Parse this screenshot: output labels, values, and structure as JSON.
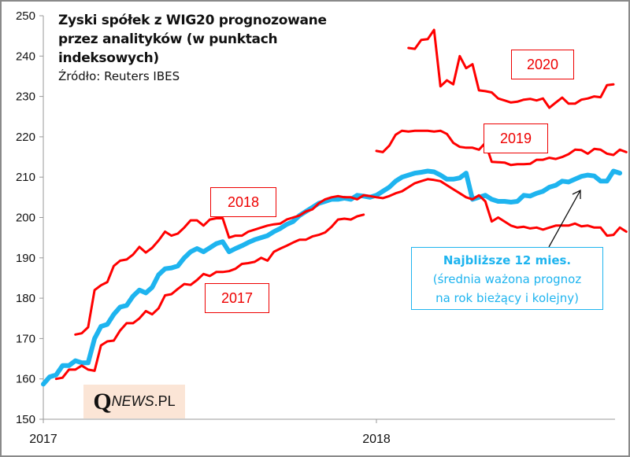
{
  "chart_data": {
    "type": "line",
    "title": "Zyski spółek z WIG20 prognozowane przez analityków (w punktach indeksowych)",
    "subtitle": "Źródło: Reuters IBES",
    "xlabel": "",
    "ylabel": "",
    "ylim": [
      150,
      250
    ],
    "yticks": [
      150,
      160,
      170,
      180,
      190,
      200,
      210,
      220,
      230,
      240,
      250
    ],
    "xticks": [
      {
        "label": "2017",
        "week": 0
      },
      {
        "label": "2018",
        "week": 52
      }
    ],
    "x_unit": "weeks since start of 2017",
    "xlim": [
      0,
      89
    ],
    "grid": false,
    "legend": "none (series labelled in boxes)",
    "series": [
      {
        "name": "2017",
        "color": "#ff0000",
        "start_week": 2,
        "values": [
          160,
          160.3,
          162.3,
          162.3,
          163.3,
          162.3,
          162,
          168.3,
          169.3,
          169.5,
          172,
          173.8,
          173.8,
          175,
          176.8,
          176,
          177.5,
          180.7,
          181,
          182.3,
          183.5,
          183.3,
          184.5,
          186,
          185.5,
          186.5,
          186.5,
          186.7,
          187.3,
          188.5,
          188.7,
          189,
          190,
          189.3,
          191.5,
          192.3,
          193,
          193.8,
          194.5,
          194.5,
          195.3,
          195.7,
          196.3,
          197.7,
          199.5,
          199.7,
          199.5,
          200.3,
          200.7
        ]
      },
      {
        "name": "2018",
        "color": "#ff0000",
        "start_week": 5,
        "values": [
          171,
          171.3,
          172.8,
          182,
          183.2,
          184,
          188,
          189.3,
          189.6,
          190.8,
          192.7,
          191.3,
          192.5,
          194.3,
          196.5,
          195.5,
          196,
          197.5,
          199.3,
          199.3,
          198,
          199.5,
          199.8,
          199.8,
          195,
          195.5,
          195.5,
          196.5,
          197,
          197.5,
          198,
          198.3,
          198.5,
          199.5,
          200,
          200.5,
          201.5,
          202,
          203.5,
          204.5,
          205,
          205.3,
          205,
          205,
          204.5,
          205.5,
          205.3,
          205,
          204.8,
          205.3,
          206,
          206.5,
          207.5,
          208.5,
          209,
          209.5,
          209.3,
          209,
          208,
          207,
          206,
          205,
          204.5,
          205.5,
          204,
          199,
          200,
          199,
          198,
          197.5,
          197.7,
          197.3,
          197.5,
          197,
          197.5,
          198,
          198,
          198,
          198.5,
          197.8,
          198,
          197.5,
          197.5,
          195.5,
          195.7,
          197.5,
          196.5
        ]
      },
      {
        "name": "2019",
        "color": "#ff0000",
        "start_week": 52,
        "values": [
          216.5,
          216.2,
          217.8,
          220.5,
          221.5,
          221.3,
          221.5,
          221.5,
          221.5,
          221.3,
          221.5,
          220.7,
          218.5,
          217.5,
          217.3,
          217.3,
          216.8,
          218.5,
          213.8,
          213.7,
          213.6,
          213,
          213.2,
          213.2,
          213.3,
          214.3,
          214.3,
          214.8,
          214.5,
          215,
          215.7,
          216.8,
          216.7,
          215.8,
          217,
          216.8,
          215.8,
          215.5,
          216.8,
          216.2
        ]
      },
      {
        "name": "2020",
        "color": "#ff0000",
        "start_week": 57,
        "values": [
          242,
          241.8,
          244,
          244.2,
          246.5,
          232.5,
          234,
          233,
          240,
          237,
          238,
          231.5,
          231.3,
          231,
          229.5,
          229,
          228.5,
          228.7,
          229.2,
          229.4,
          229,
          229.5,
          227.2,
          228.5,
          229.7,
          228.2,
          228.2,
          229.2,
          229.5,
          230,
          229.8,
          232.8,
          233
        ]
      },
      {
        "name": "Najbliższe 12 mies.",
        "color": "#1eb4ef",
        "start_week": 0,
        "values": [
          158.7,
          160.5,
          161,
          163.3,
          163.3,
          164.5,
          164,
          164,
          170,
          173,
          173.5,
          176,
          177.8,
          178.2,
          180.5,
          182,
          181.3,
          182.7,
          185.8,
          187.3,
          187.5,
          188,
          190,
          191.5,
          192.3,
          191.5,
          192.5,
          193.5,
          194,
          191.5,
          192.3,
          193,
          193.8,
          194.5,
          195,
          195.5,
          196.5,
          197.3,
          198.3,
          199,
          200.5,
          201.5,
          202.5,
          203.5,
          204,
          204.5,
          204.5,
          204.8,
          204.5,
          205.5,
          205.3,
          205,
          205.5,
          206.5,
          207.5,
          209,
          210,
          210.5,
          211,
          211.2,
          211.5,
          211.3,
          210.5,
          209.5,
          209.5,
          209.8,
          211,
          204.5,
          205,
          205.5,
          204.5,
          204,
          204,
          203.8,
          204,
          205.5,
          205.3,
          206,
          206.5,
          207.5,
          208,
          209,
          208.8,
          209.5,
          210.2,
          210.5,
          210.3,
          209,
          209,
          211.5,
          211
        ]
      }
    ],
    "annotations": [
      {
        "text": "2018",
        "style": "red-box"
      },
      {
        "text": "2017",
        "style": "red-box"
      },
      {
        "text": "2019",
        "style": "red-box"
      },
      {
        "text": "2020",
        "style": "red-box"
      },
      {
        "text": "Najbliższe 12 mies.",
        "subtext": [
          "(średnia ważona prognoz",
          "na rok bieżący i kolejny)"
        ],
        "style": "blue-box",
        "arrow": true
      }
    ]
  },
  "watermark": {
    "q": "Q",
    "news": "NEWS",
    "pl": ".PL"
  }
}
